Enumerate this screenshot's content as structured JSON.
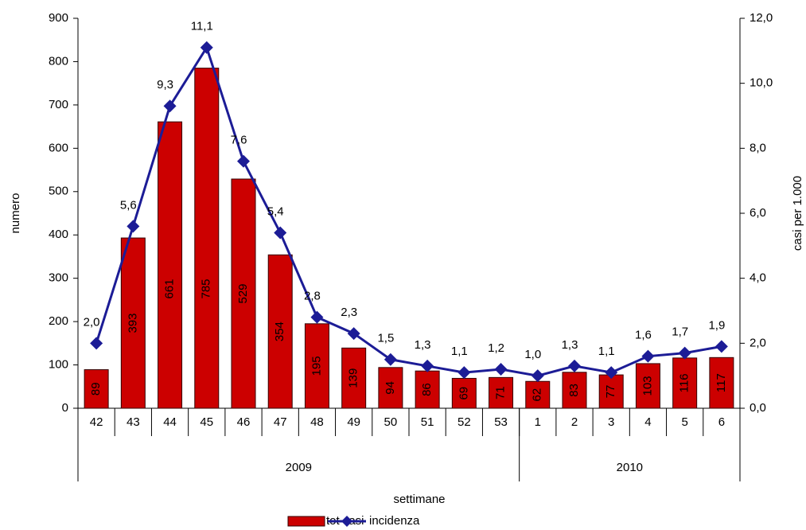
{
  "chart_data": {
    "type": "combo",
    "x_label": "settimane",
    "y_label": "numero",
    "y2_label": "casi per 1.000",
    "category_groups": [
      {
        "label": "2009",
        "categories": [
          "42",
          "43",
          "44",
          "45",
          "46",
          "47",
          "48",
          "49",
          "50",
          "51",
          "52",
          "53"
        ]
      },
      {
        "label": "2010",
        "categories": [
          "1",
          "2",
          "3",
          "4",
          "5",
          "6"
        ]
      }
    ],
    "series": [
      {
        "name": "tot casi",
        "type": "bar",
        "color": "#cc0000",
        "values": [
          89,
          393,
          661,
          785,
          529,
          354,
          195,
          139,
          94,
          86,
          69,
          71,
          62,
          83,
          77,
          103,
          116,
          117
        ]
      },
      {
        "name": "incidenza",
        "type": "line",
        "axis": "y2",
        "color": "#1c1c96",
        "values": [
          2.0,
          5.6,
          9.3,
          11.1,
          7.6,
          5.4,
          2.8,
          2.3,
          1.5,
          1.3,
          1.1,
          1.2,
          1.0,
          1.3,
          1.1,
          1.6,
          1.7,
          1.9
        ],
        "value_labels": [
          "2,0",
          "5,6",
          "9,3",
          "11,1",
          "7,6",
          "5,4",
          "2,8",
          "2,3",
          "1,5",
          "1,3",
          "1,1",
          "1,2",
          "1,0",
          "1,3",
          "1,1",
          "1,6",
          "1,7",
          "1,9"
        ]
      }
    ],
    "ylim": [
      0,
      900
    ],
    "yticks": [
      0,
      100,
      200,
      300,
      400,
      500,
      600,
      700,
      800,
      900
    ],
    "y2lim": [
      0,
      12
    ],
    "y2ticks": [
      {
        "value": 0,
        "label": "0,0"
      },
      {
        "value": 2,
        "label": "2,0"
      },
      {
        "value": 4,
        "label": "4,0"
      },
      {
        "value": 6,
        "label": "6,0"
      },
      {
        "value": 8,
        "label": "8,0"
      },
      {
        "value": 10,
        "label": "10,0"
      },
      {
        "value": 12,
        "label": "12,0"
      }
    ],
    "grid": false,
    "legend": "bottom"
  }
}
